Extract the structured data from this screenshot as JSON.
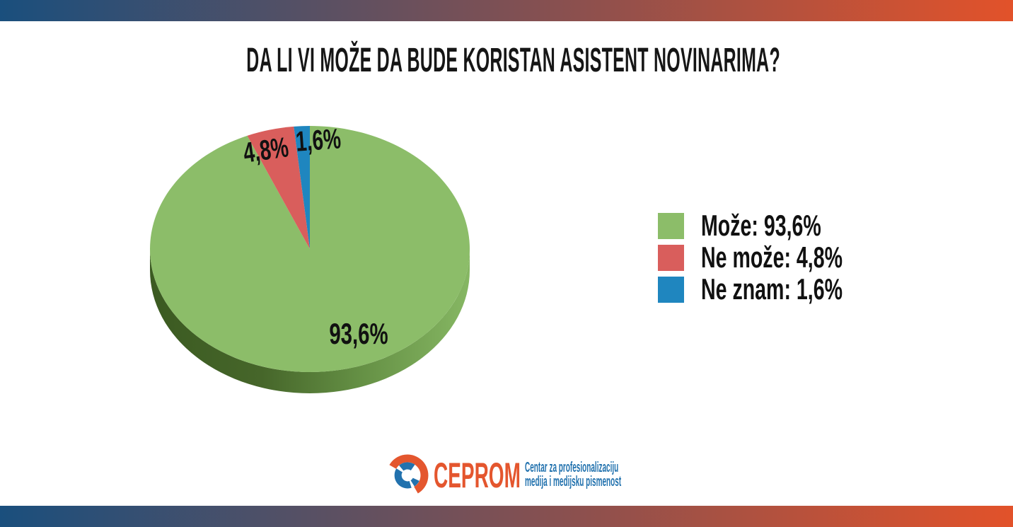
{
  "title": "DA LI VI MOŽE DA BUDE KORISTAN ASISTENT NOVINARIMA?",
  "chart_data": {
    "type": "pie",
    "title": "DA LI VI MOŽE DA BUDE KORISTAN ASISTENT NOVINARIMA?",
    "style": "3d-pie",
    "unit": "%",
    "decimal_separator": ",",
    "start_angle_deg": 0,
    "direction": "clockwise",
    "legend_position": "right",
    "slices": [
      {
        "label": "Može",
        "value": 93.6,
        "display": "93,6%",
        "color": "#8cbd69"
      },
      {
        "label": "Ne može",
        "value": 4.8,
        "display": "4,8%",
        "color": "#d95e5c"
      },
      {
        "label": "Ne znam",
        "value": 1.6,
        "display": "1,6%",
        "color": "#1f86bf"
      }
    ]
  },
  "legend": {
    "items": [
      {
        "label": "Može: 93,6%",
        "color": "#8cbd69"
      },
      {
        "label": "Ne može: 4,8%",
        "color": "#d95e5c"
      },
      {
        "label": "Ne znam: 1,6%",
        "color": "#1f86bf"
      }
    ]
  },
  "footer": {
    "brand": "CEPROM",
    "tagline_line1": "Centar za profesionalizaciju",
    "tagline_line2": "medija i medijsku pismenost"
  },
  "colors": {
    "bar_gradient_left": "#1a4f7d",
    "bar_gradient_right": "#e2522a",
    "pie_side_dark": "#3b5a21",
    "pie_side_light": "#86b763",
    "brand_orange": "#e4562e",
    "brand_blue": "#2272ae",
    "label_text": "#111111"
  }
}
